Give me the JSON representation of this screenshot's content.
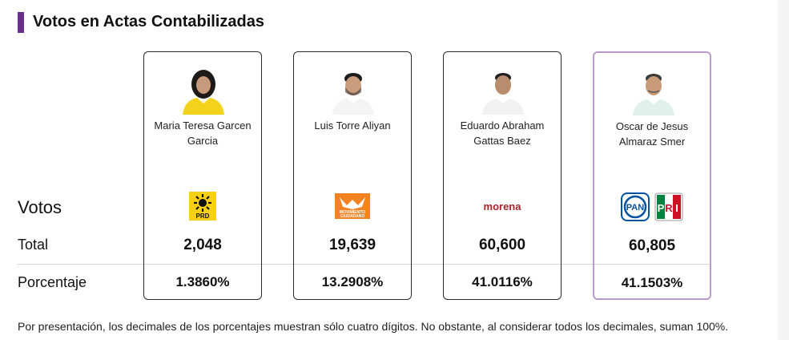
{
  "title": "Votos en Actas Contabilizadas",
  "rows": {
    "votos": "Votos",
    "total": "Total",
    "porcentaje": "Porcentaje"
  },
  "candidates": [
    {
      "name_line1": "Maria Teresa Garcen",
      "name_line2": "Garcia",
      "party": "PRD",
      "total": "2,048",
      "percentage": "1.3860%",
      "accent": "#f7d117"
    },
    {
      "name_line1": "Luis Torre Aliyan",
      "name_line2": "",
      "party": "MOVIMIENTO CIUDADANO",
      "total": "19,639",
      "percentage": "13.2908%",
      "accent": "#f58220"
    },
    {
      "name_line1": "Eduardo Abraham",
      "name_line2": "Gattas Baez",
      "party": "morena",
      "total": "60,600",
      "percentage": "41.0116%",
      "accent": "#a8232a"
    },
    {
      "name_line1": "Oscar de Jesus",
      "name_line2": "Almaraz Smer",
      "party": "PAN-PRI",
      "total": "60,805",
      "percentage": "41.1503%",
      "accent": "#0052a3"
    }
  ],
  "logos": {
    "prd": "PRD",
    "mc_line1": "MOVIMIENTO",
    "mc_line2": "CIUDADANO",
    "morena": "morena",
    "pan": "PAN",
    "pri_p": "P",
    "pri_r": "R",
    "pri_i": "I"
  },
  "footnote": "Por presentación, los decimales de los porcentajes muestran sólo cuatro dígitos. No obstante, al considerar todos los decimales, suman 100%.",
  "colors": {
    "accent_bar": "#6b2f8f",
    "winner_border": "#b89bcb"
  }
}
